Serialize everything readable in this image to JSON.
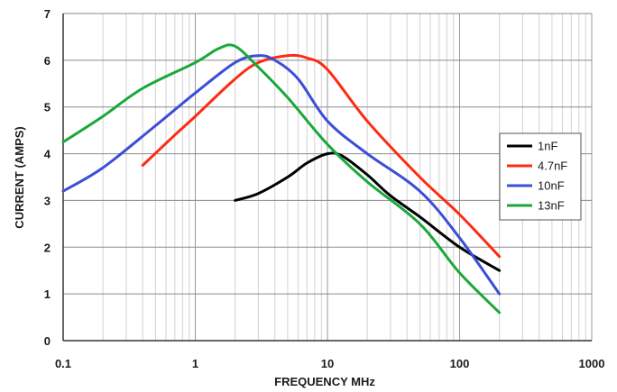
{
  "chart_data": {
    "type": "line",
    "title": "",
    "xlabel": "FREQUENCY MHz",
    "ylabel": "CURRENT (AMPS)",
    "x_scale": "log",
    "xlim": [
      0.1,
      1000
    ],
    "ylim": [
      0,
      7
    ],
    "x_ticks": [
      {
        "value": 0.1,
        "label": "0.1"
      },
      {
        "value": 1,
        "label": "1"
      },
      {
        "value": 10,
        "label": "10"
      },
      {
        "value": 100,
        "label": "100"
      },
      {
        "value": 1000,
        "label": "1000"
      }
    ],
    "y_ticks": [
      {
        "value": 0,
        "label": "0"
      },
      {
        "value": 1,
        "label": "1"
      },
      {
        "value": 2,
        "label": "2"
      },
      {
        "value": 3,
        "label": "3"
      },
      {
        "value": 4,
        "label": "4"
      },
      {
        "value": 5,
        "label": "5"
      },
      {
        "value": 6,
        "label": "6"
      },
      {
        "value": 7,
        "label": "7"
      }
    ],
    "grid": true,
    "legend_position": "right",
    "series": [
      {
        "name": "1nF",
        "color": "#000000",
        "points": [
          [
            2,
            3.0
          ],
          [
            3,
            3.15
          ],
          [
            5,
            3.5
          ],
          [
            7,
            3.8
          ],
          [
            10,
            4.0
          ],
          [
            13,
            3.95
          ],
          [
            20,
            3.55
          ],
          [
            30,
            3.1
          ],
          [
            50,
            2.65
          ],
          [
            100,
            2.0
          ],
          [
            200,
            1.5
          ]
        ]
      },
      {
        "name": "4.7nF",
        "color": "#ff2a12",
        "points": [
          [
            0.4,
            3.75
          ],
          [
            0.7,
            4.4
          ],
          [
            1,
            4.8
          ],
          [
            2,
            5.6
          ],
          [
            3,
            5.95
          ],
          [
            5,
            6.1
          ],
          [
            7,
            6.05
          ],
          [
            10,
            5.8
          ],
          [
            20,
            4.7
          ],
          [
            50,
            3.5
          ],
          [
            100,
            2.7
          ],
          [
            200,
            1.8
          ]
        ]
      },
      {
        "name": "10nF",
        "color": "#3a4fd6",
        "points": [
          [
            0.1,
            3.2
          ],
          [
            0.2,
            3.7
          ],
          [
            0.5,
            4.6
          ],
          [
            1,
            5.3
          ],
          [
            2,
            5.95
          ],
          [
            3,
            6.1
          ],
          [
            4,
            6.0
          ],
          [
            6,
            5.6
          ],
          [
            10,
            4.7
          ],
          [
            20,
            4.0
          ],
          [
            50,
            3.2
          ],
          [
            100,
            2.2
          ],
          [
            200,
            1.0
          ]
        ]
      },
      {
        "name": "13nF",
        "color": "#1aa83a",
        "points": [
          [
            0.1,
            4.25
          ],
          [
            0.2,
            4.8
          ],
          [
            0.4,
            5.4
          ],
          [
            1,
            5.95
          ],
          [
            1.5,
            6.25
          ],
          [
            2,
            6.3
          ],
          [
            3,
            5.85
          ],
          [
            5,
            5.2
          ],
          [
            10,
            4.2
          ],
          [
            20,
            3.4
          ],
          [
            50,
            2.5
          ],
          [
            100,
            1.45
          ],
          [
            200,
            0.6
          ]
        ]
      }
    ]
  }
}
